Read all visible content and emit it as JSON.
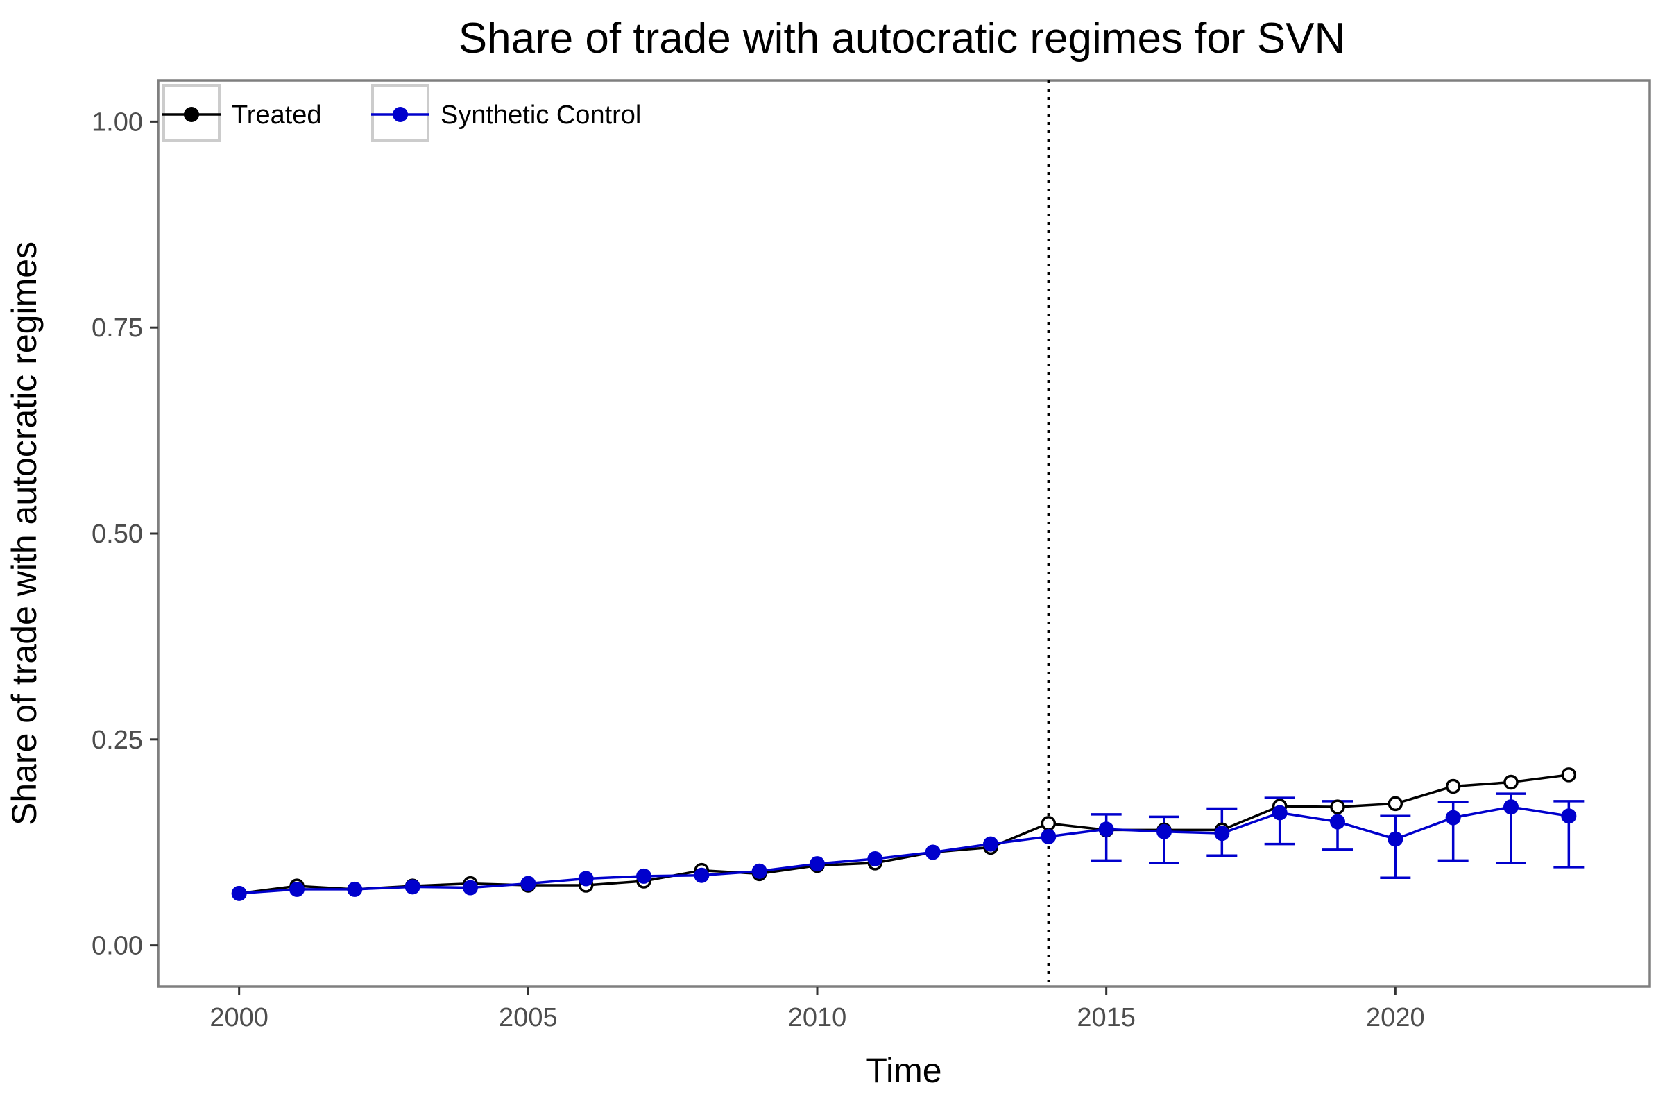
{
  "chart_data": {
    "type": "line",
    "title": "Share of trade with autocratic regimes for SVN",
    "xlabel": "Time",
    "ylabel": "Share of trade with autocratic regimes",
    "xlim": [
      1998.6,
      2024.4
    ],
    "ylim": [
      -0.05,
      1.05
    ],
    "x_ticks": [
      2000,
      2005,
      2010,
      2015,
      2020
    ],
    "x_tick_labels": [
      "2000",
      "2005",
      "2010",
      "2015",
      "2020"
    ],
    "y_ticks": [
      0,
      0.25,
      0.5,
      0.75,
      1.0
    ],
    "y_tick_labels": [
      "0.00",
      "0.25",
      "0.50",
      "0.75",
      "1.00"
    ],
    "treatment_year": 2014,
    "grid": false,
    "legend_position": "top-left",
    "x": [
      2000,
      2001,
      2002,
      2003,
      2004,
      2005,
      2006,
      2007,
      2008,
      2009,
      2010,
      2011,
      2012,
      2013,
      2014,
      2015,
      2016,
      2017,
      2018,
      2019,
      2020,
      2021,
      2022,
      2023
    ],
    "series": [
      {
        "name": "Treated",
        "color": "#000000",
        "marker": "open-circle",
        "values": [
          0.063,
          0.072,
          0.068,
          0.072,
          0.075,
          0.073,
          0.073,
          0.078,
          0.091,
          0.087,
          0.097,
          0.1,
          0.113,
          0.119,
          0.148,
          0.14,
          0.14,
          0.14,
          0.169,
          0.168,
          0.172,
          0.193,
          0.198,
          0.207
        ]
      },
      {
        "name": "Synthetic Control",
        "color": "#0000cc",
        "marker": "filled-circle",
        "values": [
          0.063,
          0.068,
          0.068,
          0.071,
          0.07,
          0.075,
          0.081,
          0.084,
          0.085,
          0.09,
          0.099,
          0.105,
          0.113,
          0.123,
          0.132,
          0.141,
          0.138,
          0.136,
          0.161,
          0.15,
          0.129,
          0.155,
          0.168,
          0.157
        ],
        "error_bars": {
          "x": [
            2015,
            2016,
            2017,
            2018,
            2019,
            2020,
            2021,
            2022,
            2023
          ],
          "lower": [
            0.103,
            0.1,
            0.109,
            0.123,
            0.116,
            0.082,
            0.103,
            0.1,
            0.095
          ],
          "upper": [
            0.159,
            0.156,
            0.166,
            0.179,
            0.175,
            0.157,
            0.174,
            0.184,
            0.175
          ]
        }
      }
    ]
  }
}
